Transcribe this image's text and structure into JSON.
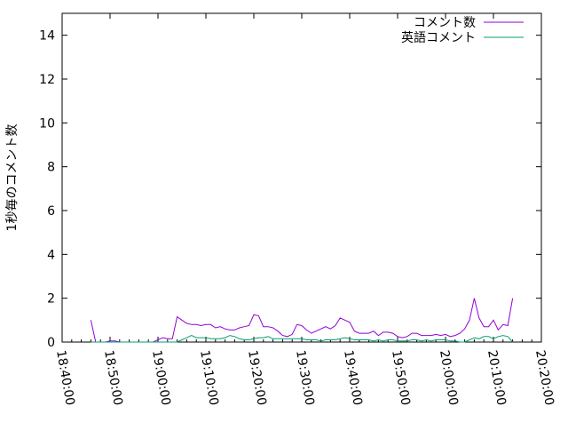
{
  "chart_data": {
    "type": "line",
    "title": "",
    "xlabel": "",
    "ylabel": "1秒毎のコメント数",
    "xlim": [
      "18:40:00",
      "20:20:00"
    ],
    "ylim": [
      0,
      15
    ],
    "x_ticks": [
      "18:40:00",
      "18:50:00",
      "19:00:00",
      "19:10:00",
      "19:20:00",
      "19:30:00",
      "19:40:00",
      "19:50:00",
      "20:00:00",
      "20:10:00",
      "20:20:00"
    ],
    "y_ticks": [
      "0",
      "2",
      "4",
      "6",
      "8",
      "10",
      "12",
      "14"
    ],
    "grid": false,
    "legend": "top-right",
    "series": [
      {
        "name": "コメント数",
        "color": "#9400d3",
        "start": "18:46:00",
        "interval_seconds": 60,
        "values": [
          1.0,
          0,
          0,
          0,
          0.05,
          0.05,
          0,
          0,
          0,
          0,
          0,
          0,
          0,
          0,
          0.1,
          0.2,
          0.15,
          0.15,
          1.15,
          1.0,
          0.85,
          0.8,
          0.8,
          0.75,
          0.8,
          0.8,
          0.65,
          0.7,
          0.6,
          0.55,
          0.55,
          0.65,
          0.7,
          0.75,
          1.25,
          1.2,
          0.7,
          0.7,
          0.65,
          0.5,
          0.3,
          0.25,
          0.35,
          0.8,
          0.75,
          0.55,
          0.4,
          0.5,
          0.6,
          0.7,
          0.6,
          0.75,
          1.1,
          1.0,
          0.9,
          0.5,
          0.4,
          0.4,
          0.4,
          0.5,
          0.3,
          0.45,
          0.45,
          0.4,
          0.25,
          0.2,
          0.25,
          0.4,
          0.4,
          0.3,
          0.3,
          0.3,
          0.35,
          0.3,
          0.35,
          0.25,
          0.3,
          0.4,
          0.6,
          1.0,
          2.0,
          1.1,
          0.7,
          0.7,
          1.0,
          0.55,
          0.8,
          0.75,
          2.0
        ]
      },
      {
        "name": "英語コメント",
        "color": "#009e73",
        "start": "18:46:00",
        "interval_seconds": 60,
        "values": [
          0,
          0,
          0,
          0,
          0,
          0,
          0,
          0,
          0,
          0,
          0,
          0,
          0,
          0,
          0,
          0,
          0,
          0,
          0,
          0.1,
          0.2,
          0.3,
          0.2,
          0.2,
          0.2,
          0.15,
          0.15,
          0.15,
          0.2,
          0.3,
          0.25,
          0.15,
          0.1,
          0.1,
          0.15,
          0.2,
          0.2,
          0.25,
          0.15,
          0.15,
          0.15,
          0.15,
          0.15,
          0.15,
          0.15,
          0.1,
          0.1,
          0.1,
          0.05,
          0.1,
          0.1,
          0.1,
          0.15,
          0.2,
          0.15,
          0.1,
          0.1,
          0.1,
          0.1,
          0.05,
          0.1,
          0.05,
          0.1,
          0.1,
          0.05,
          0.05,
          0.05,
          0.1,
          0.1,
          0.05,
          0.1,
          0.05,
          0.1,
          0.1,
          0.1,
          0.05,
          0.05,
          0,
          0,
          0.1,
          0.2,
          0.15,
          0.25,
          0.25,
          0.15,
          0.25,
          0.3,
          0.25,
          0
        ]
      }
    ]
  }
}
